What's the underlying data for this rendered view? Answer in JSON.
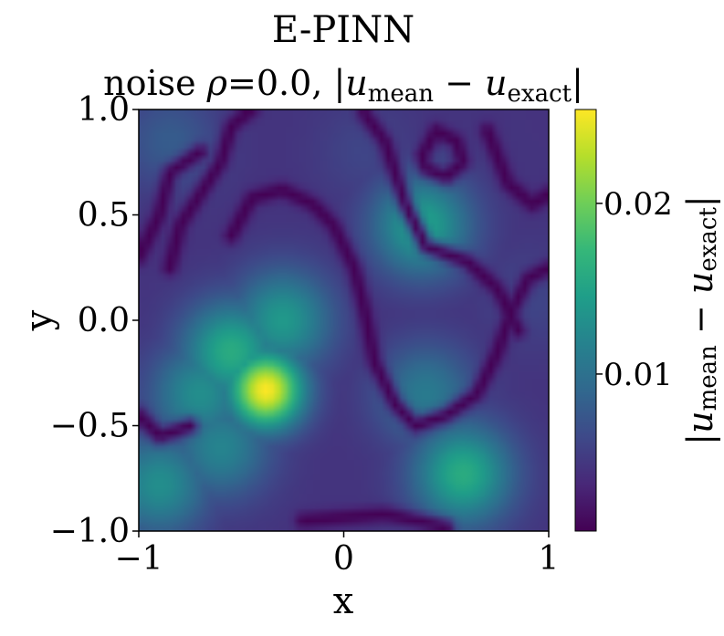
{
  "chart_data": {
    "type": "heatmap",
    "title": "E-PINN",
    "subtitle": {
      "prefix": "noise ",
      "rho_symbol": "ρ",
      "rho_value": "=0.0, ",
      "expr_bar": "|",
      "u1": "u",
      "sub1": "mean",
      "minus": " − ",
      "u2": "u",
      "sub2": "exact",
      "expr_bar_end": "|"
    },
    "xlabel": "x",
    "ylabel": "y",
    "xlim": [
      -1,
      1
    ],
    "ylim": [
      -1,
      1
    ],
    "x_ticks": [
      {
        "value": -1,
        "label": "−1"
      },
      {
        "value": 0,
        "label": "0"
      },
      {
        "value": 1,
        "label": "1"
      }
    ],
    "y_ticks": [
      {
        "value": 1.0,
        "label": "1.0"
      },
      {
        "value": 0.5,
        "label": "0.5"
      },
      {
        "value": 0.0,
        "label": "0.0"
      },
      {
        "value": -0.5,
        "label": "−0.5"
      },
      {
        "value": -1.0,
        "label": "−1.0"
      }
    ],
    "colorbar": {
      "colormap": "viridis",
      "range": [
        0.0008,
        0.0255
      ],
      "ticks": [
        {
          "value": 0.01,
          "label": "0.01"
        },
        {
          "value": 0.02,
          "label": "0.02"
        }
      ],
      "label": {
        "bar": "|",
        "u1": "u",
        "sub1": "mean",
        "minus": " − ",
        "u2": "u",
        "sub2": "exact",
        "bar_end": "|"
      }
    },
    "grid": false,
    "features": [
      {
        "x": -0.38,
        "y": -0.33,
        "value": 0.0255,
        "kind": "global maximum"
      },
      {
        "x": -0.55,
        "y": -0.15,
        "value": 0.016,
        "kind": "ridge"
      },
      {
        "x": -0.3,
        "y": 0.0,
        "value": 0.014,
        "kind": "ridge"
      },
      {
        "x": -0.7,
        "y": -0.35,
        "value": 0.013,
        "kind": "ridge"
      },
      {
        "x": -0.6,
        "y": -0.6,
        "value": 0.012,
        "kind": "local maximum"
      },
      {
        "x": -0.9,
        "y": -0.78,
        "value": 0.013,
        "kind": "local maximum"
      },
      {
        "x": 0.38,
        "y": 0.45,
        "value": 0.015,
        "kind": "local maximum"
      },
      {
        "x": 0.58,
        "y": -0.73,
        "value": 0.016,
        "kind": "local maximum"
      },
      {
        "x": 0.4,
        "y": -0.35,
        "value": 0.011,
        "kind": "local maximum"
      },
      {
        "x": -0.85,
        "y": 0.85,
        "value": 0.008,
        "kind": "local maximum"
      },
      {
        "x": 0.1,
        "y": 0.8,
        "value": 0.006,
        "kind": "local maximum"
      },
      {
        "x": 0.9,
        "y": 0.1,
        "value": 0.006,
        "kind": "local maximum"
      }
    ],
    "minimum_curves": [
      [
        [
          -0.85,
          0.25
        ],
        [
          -0.8,
          0.45
        ],
        [
          -0.7,
          0.6
        ],
        [
          -0.6,
          0.75
        ],
        [
          -0.55,
          0.92
        ],
        [
          -0.45,
          1.0
        ]
      ],
      [
        [
          -0.55,
          0.4
        ],
        [
          -0.45,
          0.58
        ],
        [
          -0.3,
          0.62
        ],
        [
          -0.15,
          0.55
        ],
        [
          -0.05,
          0.45
        ],
        [
          0.05,
          0.25
        ],
        [
          0.1,
          0.05
        ],
        [
          0.15,
          -0.2
        ],
        [
          0.25,
          -0.4
        ],
        [
          0.35,
          -0.5
        ],
        [
          0.5,
          -0.45
        ],
        [
          0.65,
          -0.35
        ],
        [
          0.75,
          -0.15
        ],
        [
          0.82,
          0.05
        ],
        [
          0.9,
          0.2
        ],
        [
          1.0,
          0.25
        ]
      ],
      [
        [
          0.1,
          0.98
        ],
        [
          0.2,
          0.85
        ],
        [
          0.25,
          0.7
        ],
        [
          0.3,
          0.55
        ],
        [
          0.4,
          0.35
        ],
        [
          0.6,
          0.28
        ],
        [
          0.75,
          0.15
        ],
        [
          0.85,
          -0.05
        ]
      ],
      [
        [
          0.38,
          0.78
        ],
        [
          0.45,
          0.9
        ],
        [
          0.55,
          0.85
        ],
        [
          0.58,
          0.75
        ],
        [
          0.5,
          0.68
        ],
        [
          0.4,
          0.72
        ],
        [
          0.38,
          0.78
        ]
      ],
      [
        [
          0.7,
          0.9
        ],
        [
          0.8,
          0.65
        ],
        [
          0.92,
          0.55
        ],
        [
          1.0,
          0.6
        ]
      ],
      [
        [
          -1.0,
          0.3
        ],
        [
          -0.9,
          0.5
        ],
        [
          -0.85,
          0.7
        ],
        [
          -0.7,
          0.8
        ]
      ],
      [
        [
          -0.2,
          -0.95
        ],
        [
          0.2,
          -0.92
        ],
        [
          0.5,
          -0.98
        ]
      ],
      [
        [
          -1.0,
          -0.45
        ],
        [
          -0.9,
          -0.55
        ],
        [
          -0.75,
          -0.5
        ]
      ]
    ],
    "background_value": 0.0045
  }
}
